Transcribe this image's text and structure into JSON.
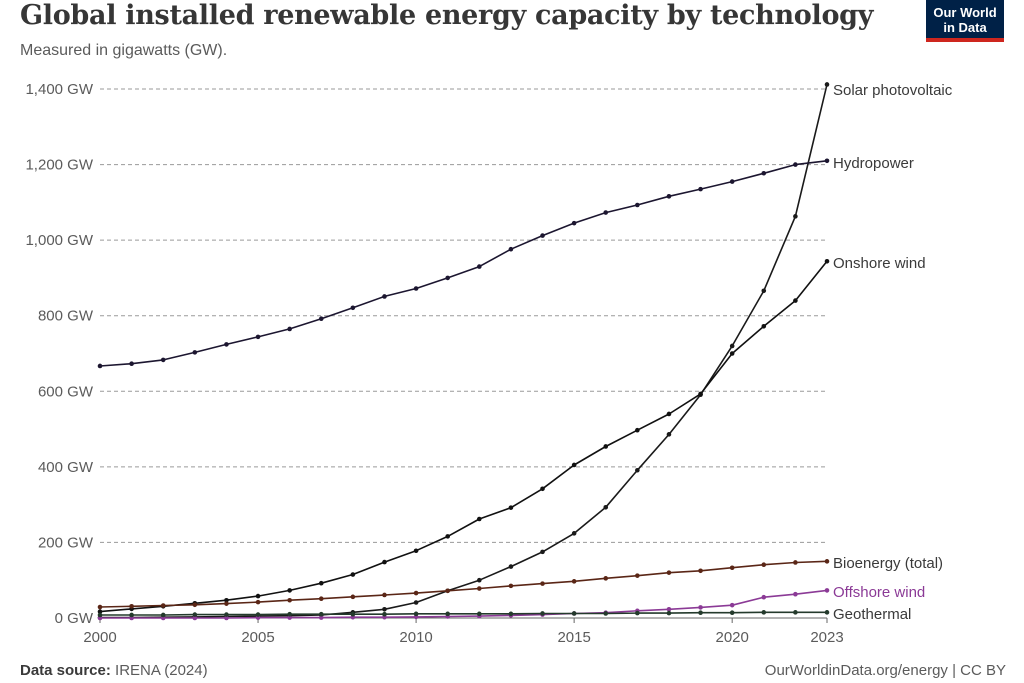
{
  "header": {
    "title": "Global installed renewable energy capacity by technology",
    "subtitle": "Measured in gigawatts (GW).",
    "logo_line1": "Our World",
    "logo_line2": "in Data"
  },
  "footer": {
    "source_label": "Data source:",
    "source_value": "IRENA (2024)",
    "credit": "OurWorldinData.org/energy | CC BY"
  },
  "colors": {
    "solar": "#1a1a1a",
    "hydro": "#1c1630",
    "onshore": "#111111",
    "bioenergy": "#5a2616",
    "offshore": "#8b3a96",
    "geothermal": "#243a2c",
    "grid": "#9a9a9a",
    "axis": "#666666"
  },
  "chart_data": {
    "type": "line",
    "title": "Global installed renewable energy capacity by technology",
    "subtitle": "Measured in gigawatts (GW).",
    "x": [
      2000,
      2001,
      2002,
      2003,
      2004,
      2005,
      2006,
      2007,
      2008,
      2009,
      2010,
      2011,
      2012,
      2013,
      2014,
      2015,
      2016,
      2017,
      2018,
      2019,
      2020,
      2021,
      2022,
      2023
    ],
    "xticks": [
      2000,
      2005,
      2010,
      2015,
      2020,
      2023
    ],
    "yticks": [
      0,
      200,
      400,
      600,
      800,
      1000,
      1200,
      1400
    ],
    "ytick_labels": [
      "0 GW",
      "200 GW",
      "400 GW",
      "600 GW",
      "800 GW",
      "1,000 GW",
      "1,200 GW",
      "1,400 GW"
    ],
    "ylim": [
      0,
      1400
    ],
    "xlim": [
      2000,
      2023
    ],
    "grid": true,
    "legend": "right-end labels",
    "series": [
      {
        "name": "Solar photovoltaic",
        "color_key": "solar",
        "values": [
          1,
          1,
          2,
          3,
          4,
          5,
          6,
          8,
          15,
          23,
          41,
          72,
          100,
          136,
          175,
          224,
          293,
          391,
          486,
          591,
          720,
          866,
          1063,
          1412
        ]
      },
      {
        "name": "Hydropower",
        "color_key": "hydro",
        "values": [
          667,
          673,
          683,
          703,
          724,
          744,
          765,
          792,
          821,
          851,
          872,
          900,
          930,
          976,
          1012,
          1045,
          1073,
          1093,
          1116,
          1135,
          1155,
          1177,
          1200,
          1210
        ]
      },
      {
        "name": "Onshore wind",
        "color_key": "onshore",
        "values": [
          17,
          24,
          31,
          39,
          47,
          58,
          73,
          92,
          115,
          148,
          178,
          216,
          262,
          292,
          342,
          405,
          454,
          497,
          540,
          593,
          700,
          772,
          840,
          944
        ]
      },
      {
        "name": "Bioenergy (total)",
        "color_key": "bioenergy",
        "values": [
          29,
          31,
          33,
          35,
          38,
          42,
          47,
          51,
          56,
          61,
          66,
          72,
          78,
          85,
          91,
          97,
          105,
          112,
          120,
          125,
          133,
          141,
          147,
          150
        ]
      },
      {
        "name": "Offshore wind",
        "color_key": "offshore",
        "values": [
          0,
          0,
          0,
          0,
          0,
          1,
          1,
          1,
          2,
          2,
          3,
          4,
          5,
          7,
          9,
          12,
          14,
          19,
          23,
          28,
          34,
          55,
          63,
          73
        ]
      },
      {
        "name": "Geothermal",
        "color_key": "geothermal",
        "values": [
          8,
          8,
          8,
          9,
          9,
          9,
          10,
          10,
          10,
          10,
          11,
          11,
          11,
          11,
          12,
          12,
          12,
          13,
          13,
          14,
          14,
          15,
          15,
          15
        ]
      }
    ]
  }
}
